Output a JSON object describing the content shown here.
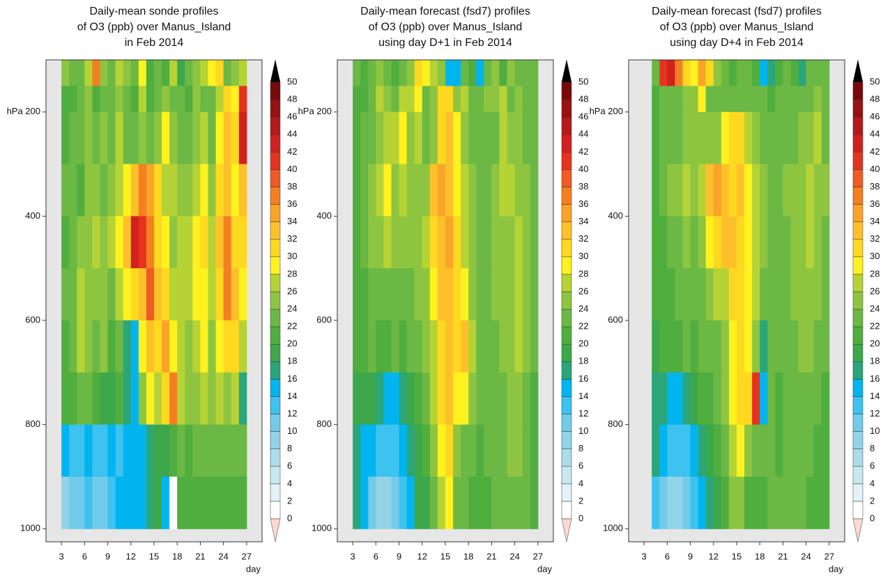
{
  "chart_data": [
    {
      "type": "heatmap",
      "title": [
        "Daily-mean sonde profiles",
        "of O3 (ppb) over Manus_Island",
        "in Feb 2014"
      ],
      "x": [
        3,
        4,
        5,
        6,
        7,
        8,
        9,
        10,
        11,
        12,
        13,
        14,
        15,
        16,
        17,
        18,
        19,
        20,
        21,
        22,
        23,
        24,
        25,
        26
      ],
      "ybins": [
        100,
        150,
        200,
        300,
        400,
        500,
        600,
        700,
        800,
        900,
        1000
      ],
      "z": [
        [
          24,
          22,
          22,
          26,
          36,
          24,
          22,
          26,
          24,
          22,
          28,
          20,
          22,
          20,
          26,
          18,
          22,
          24,
          26,
          28,
          30,
          22,
          24,
          26
        ],
        [
          20,
          20,
          22,
          24,
          20,
          22,
          22,
          24,
          22,
          20,
          26,
          20,
          22,
          24,
          22,
          22,
          20,
          24,
          22,
          22,
          26,
          30,
          28,
          40
        ],
        [
          20,
          22,
          22,
          24,
          22,
          24,
          22,
          26,
          22,
          22,
          24,
          22,
          24,
          28,
          24,
          22,
          22,
          24,
          26,
          22,
          28,
          32,
          30,
          42
        ],
        [
          22,
          22,
          20,
          24,
          24,
          22,
          24,
          26,
          28,
          32,
          36,
          34,
          30,
          26,
          26,
          24,
          24,
          26,
          28,
          24,
          30,
          32,
          28,
          32
        ],
        [
          20,
          22,
          24,
          24,
          26,
          24,
          26,
          28,
          32,
          42,
          40,
          36,
          30,
          28,
          24,
          26,
          26,
          28,
          30,
          26,
          32,
          36,
          30,
          30
        ],
        [
          22,
          22,
          26,
          24,
          24,
          24,
          22,
          26,
          28,
          30,
          32,
          38,
          32,
          30,
          26,
          26,
          26,
          28,
          28,
          26,
          30,
          36,
          32,
          28
        ],
        [
          20,
          22,
          26,
          24,
          22,
          24,
          20,
          22,
          16,
          14,
          28,
          32,
          30,
          34,
          28,
          26,
          24,
          26,
          28,
          24,
          28,
          30,
          30,
          26
        ],
        [
          20,
          20,
          22,
          22,
          20,
          18,
          18,
          20,
          16,
          14,
          24,
          28,
          26,
          30,
          36,
          26,
          24,
          24,
          26,
          24,
          26,
          24,
          26,
          16
        ],
        [
          14,
          12,
          12,
          14,
          12,
          12,
          14,
          12,
          14,
          14,
          14,
          16,
          18,
          18,
          20,
          22,
          20,
          22,
          22,
          22,
          22,
          22,
          22,
          22
        ],
        [
          8,
          10,
          10,
          12,
          10,
          10,
          12,
          14,
          14,
          14,
          14,
          16,
          18,
          14,
          1,
          20,
          20,
          20,
          20,
          20,
          20,
          20,
          20,
          20
        ]
      ],
      "xlim": [
        1,
        29
      ],
      "xticks": [
        3,
        6,
        9,
        12,
        15,
        18,
        21,
        24,
        27
      ],
      "xlabel": "day",
      "ylim": [
        100,
        1025
      ],
      "yticks": [
        {
          "value": 200,
          "label": "hPa 200"
        },
        400,
        600,
        800,
        1000
      ],
      "levels": [
        0,
        2,
        4,
        6,
        8,
        10,
        12,
        14,
        16,
        18,
        20,
        22,
        24,
        26,
        28,
        30,
        32,
        34,
        36,
        38,
        40,
        42,
        44,
        46,
        48,
        50
      ]
    },
    {
      "type": "heatmap",
      "title": [
        "Daily-mean forecast (fsd7) profiles",
        "of O3 (ppb) over Manus_Island",
        "using day D+1 in Feb 2014"
      ],
      "x": [
        3,
        4,
        5,
        6,
        7,
        8,
        9,
        10,
        11,
        12,
        13,
        14,
        15,
        16,
        17,
        18,
        19,
        20,
        21,
        22,
        23,
        24,
        25,
        26
      ],
      "ybins": [
        100,
        150,
        200,
        300,
        400,
        500,
        600,
        700,
        800,
        900,
        1000
      ],
      "z": [
        [
          22,
          20,
          22,
          24,
          22,
          20,
          22,
          24,
          30,
          28,
          26,
          24,
          14,
          14,
          22,
          20,
          14,
          22,
          24,
          20,
          24,
          22,
          22,
          22
        ],
        [
          20,
          20,
          22,
          26,
          24,
          22,
          26,
          26,
          28,
          22,
          24,
          30,
          30,
          24,
          26,
          22,
          22,
          24,
          24,
          26,
          22,
          24,
          22,
          22
        ],
        [
          20,
          22,
          22,
          24,
          26,
          26,
          28,
          24,
          26,
          22,
          24,
          30,
          32,
          28,
          24,
          22,
          22,
          22,
          22,
          26,
          24,
          24,
          22,
          22
        ],
        [
          20,
          22,
          24,
          26,
          28,
          24,
          26,
          24,
          24,
          24,
          32,
          34,
          32,
          28,
          26,
          24,
          22,
          22,
          24,
          26,
          26,
          24,
          24,
          22
        ],
        [
          20,
          22,
          24,
          24,
          26,
          24,
          24,
          24,
          24,
          26,
          30,
          32,
          34,
          30,
          26,
          24,
          22,
          22,
          24,
          24,
          24,
          26,
          24,
          22
        ],
        [
          20,
          20,
          22,
          22,
          22,
          22,
          22,
          22,
          24,
          24,
          28,
          32,
          32,
          30,
          28,
          24,
          22,
          22,
          24,
          24,
          24,
          26,
          24,
          22
        ],
        [
          20,
          20,
          22,
          20,
          20,
          22,
          20,
          22,
          22,
          24,
          26,
          30,
          32,
          30,
          32,
          26,
          22,
          22,
          22,
          24,
          24,
          26,
          24,
          22
        ],
        [
          18,
          18,
          18,
          16,
          14,
          14,
          16,
          18,
          20,
          22,
          26,
          30,
          32,
          28,
          28,
          24,
          22,
          22,
          22,
          22,
          24,
          24,
          22,
          20
        ],
        [
          16,
          14,
          14,
          12,
          12,
          12,
          14,
          16,
          18,
          20,
          24,
          28,
          30,
          24,
          22,
          22,
          20,
          22,
          22,
          22,
          24,
          24,
          22,
          20
        ],
        [
          16,
          14,
          10,
          8,
          8,
          10,
          12,
          14,
          18,
          18,
          22,
          26,
          28,
          22,
          22,
          20,
          20,
          20,
          22,
          22,
          22,
          22,
          22,
          20
        ]
      ],
      "xlim": [
        1,
        29
      ],
      "xticks": [
        3,
        6,
        9,
        12,
        15,
        18,
        21,
        24,
        27
      ],
      "xlabel": "day",
      "ylim": [
        100,
        1025
      ],
      "yticks": [
        {
          "value": 200,
          "label": "hPa 200"
        },
        400,
        600,
        800,
        1000
      ],
      "levels": [
        0,
        2,
        4,
        6,
        8,
        10,
        12,
        14,
        16,
        18,
        20,
        22,
        24,
        26,
        28,
        30,
        32,
        34,
        36,
        38,
        40,
        42,
        44,
        46,
        48,
        50
      ]
    },
    {
      "type": "heatmap",
      "title": [
        "Daily-mean forecast (fsd7) profiles",
        "of O3 (ppb) over Manus_Island",
        "using day D+4 in Feb 2014"
      ],
      "x": [
        3,
        4,
        5,
        6,
        7,
        8,
        9,
        10,
        11,
        12,
        13,
        14,
        15,
        16,
        17,
        18,
        19,
        20,
        21,
        22,
        23,
        24,
        25,
        26
      ],
      "ybins": [
        100,
        150,
        200,
        300,
        400,
        500,
        600,
        700,
        800,
        900,
        1000
      ],
      "z": [
        [
          null,
          22,
          40,
          42,
          36,
          30,
          28,
          34,
          30,
          24,
          22,
          20,
          22,
          22,
          20,
          14,
          16,
          20,
          22,
          20,
          16,
          22,
          22,
          22
        ],
        [
          null,
          20,
          22,
          22,
          22,
          24,
          24,
          28,
          22,
          22,
          22,
          22,
          22,
          22,
          22,
          22,
          20,
          22,
          22,
          22,
          22,
          22,
          24,
          22
        ],
        [
          null,
          20,
          22,
          22,
          22,
          24,
          24,
          24,
          24,
          24,
          28,
          30,
          30,
          26,
          24,
          22,
          22,
          22,
          22,
          22,
          24,
          24,
          26,
          22
        ],
        [
          null,
          20,
          22,
          24,
          24,
          26,
          24,
          26,
          32,
          34,
          32,
          30,
          32,
          28,
          26,
          24,
          22,
          22,
          24,
          24,
          24,
          26,
          24,
          24
        ],
        [
          null,
          20,
          20,
          22,
          22,
          24,
          22,
          24,
          28,
          30,
          32,
          32,
          30,
          28,
          26,
          24,
          22,
          22,
          22,
          24,
          24,
          26,
          24,
          22
        ],
        [
          null,
          20,
          20,
          20,
          22,
          22,
          22,
          22,
          24,
          26,
          26,
          30,
          30,
          28,
          26,
          22,
          22,
          22,
          22,
          24,
          24,
          24,
          24,
          22
        ],
        [
          null,
          18,
          20,
          20,
          20,
          22,
          20,
          22,
          22,
          22,
          24,
          28,
          30,
          28,
          24,
          16,
          22,
          22,
          22,
          22,
          24,
          24,
          22,
          22
        ],
        [
          null,
          16,
          16,
          14,
          14,
          16,
          18,
          20,
          20,
          22,
          24,
          28,
          30,
          30,
          40,
          14,
          22,
          20,
          22,
          22,
          22,
          22,
          22,
          20
        ],
        [
          null,
          16,
          14,
          12,
          12,
          12,
          14,
          16,
          18,
          20,
          22,
          26,
          28,
          24,
          22,
          22,
          22,
          20,
          22,
          22,
          22,
          22,
          20,
          20
        ],
        [
          null,
          12,
          10,
          8,
          8,
          10,
          12,
          14,
          16,
          18,
          20,
          24,
          24,
          20,
          20,
          20,
          22,
          22,
          22,
          22,
          22,
          20,
          20,
          20
        ]
      ],
      "xlim": [
        1,
        29
      ],
      "xticks": [
        3,
        6,
        9,
        12,
        15,
        18,
        21,
        24,
        27
      ],
      "xlabel": "day",
      "ylim": [
        100,
        1025
      ],
      "yticks": [
        {
          "value": 200,
          "label": "hPa 200"
        },
        400,
        600,
        800,
        1000
      ],
      "levels": [
        0,
        2,
        4,
        6,
        8,
        10,
        12,
        14,
        16,
        18,
        20,
        22,
        24,
        26,
        28,
        30,
        32,
        34,
        36,
        38,
        40,
        42,
        44,
        46,
        48,
        50
      ]
    }
  ]
}
